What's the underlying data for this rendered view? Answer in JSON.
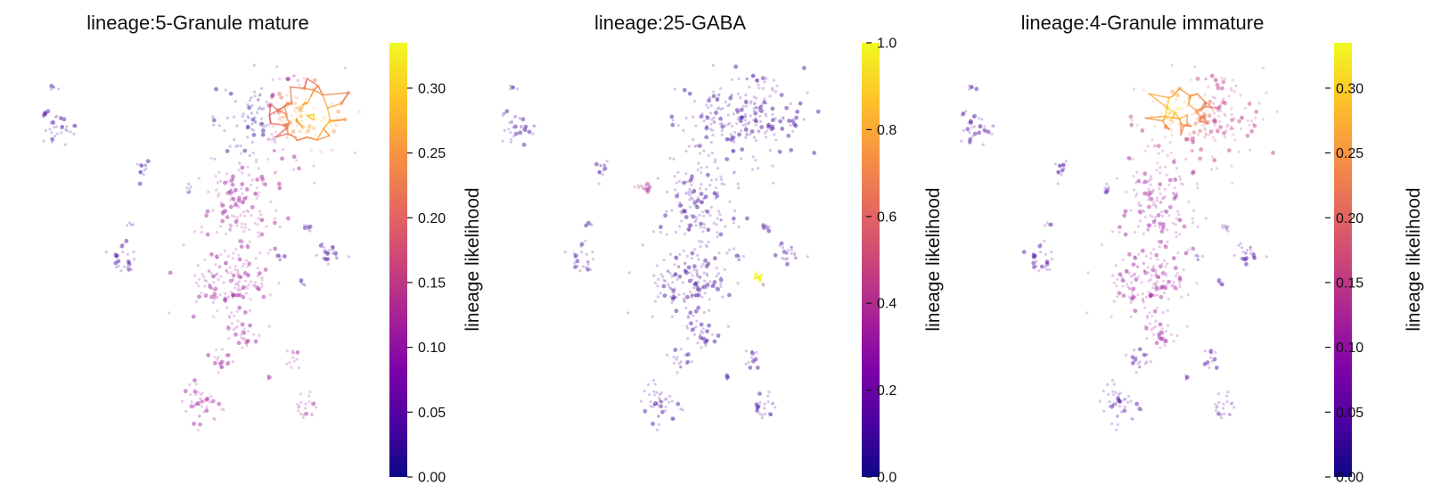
{
  "chart_data": [
    {
      "type": "scatter",
      "title": "lineage:5-Granule mature",
      "colorbar": {
        "label": "lineage likelihood",
        "range": [
          0,
          0.335
        ],
        "ticks": [
          "0.00",
          "0.05",
          "0.10",
          "0.15",
          "0.20",
          "0.25",
          "0.30"
        ],
        "tick_values": [
          0,
          0.05,
          0.1,
          0.15,
          0.2,
          0.25,
          0.3
        ],
        "colormap": "plasma"
      },
      "highlight": {
        "region": "upper-right lobe",
        "peak": 0.33
      },
      "grid": false,
      "axes_visible": false
    },
    {
      "type": "scatter",
      "title": "lineage:25-GABA",
      "colorbar": {
        "label": "lineage likelihood",
        "range": [
          0,
          1.0
        ],
        "ticks": [
          "0.0",
          "0.2",
          "0.4",
          "0.6",
          "0.8",
          "1.0"
        ],
        "tick_values": [
          0,
          0.2,
          0.4,
          0.6,
          0.8,
          1.0
        ],
        "colormap": "plasma"
      },
      "highlight": {
        "region": "small cluster right of center",
        "peak": 1.0
      },
      "grid": false,
      "axes_visible": false
    },
    {
      "type": "scatter",
      "title": "lineage:4-Granule immature",
      "colorbar": {
        "label": "lineage likelihood",
        "range": [
          0,
          0.335
        ],
        "ticks": [
          "0.00",
          "0.05",
          "0.10",
          "0.15",
          "0.20",
          "0.25",
          "0.30"
        ],
        "tick_values": [
          0,
          0.05,
          0.1,
          0.15,
          0.2,
          0.25,
          0.3
        ],
        "colormap": "plasma"
      },
      "highlight": {
        "region": "upper-left of top lobe",
        "peak": 0.33
      },
      "grid": false,
      "axes_visible": false
    }
  ]
}
